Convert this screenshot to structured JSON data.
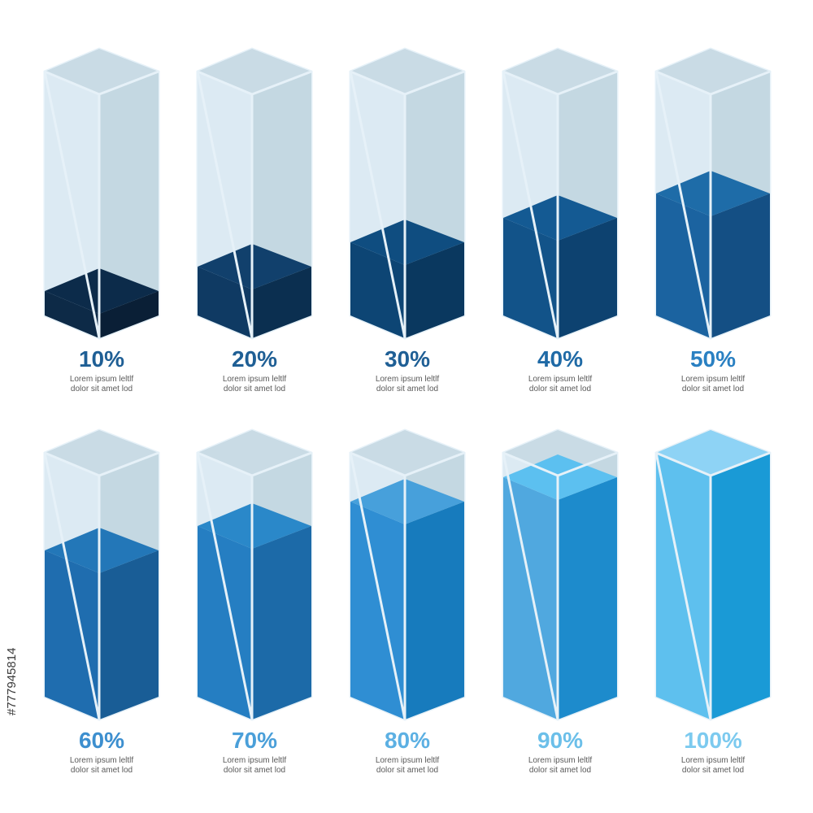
{
  "chart_data": {
    "type": "bar",
    "categories": [
      "10%",
      "20%",
      "30%",
      "40%",
      "50%",
      "60%",
      "70%",
      "80%",
      "90%",
      "100%"
    ],
    "values": [
      10,
      20,
      30,
      40,
      50,
      60,
      70,
      80,
      90,
      100
    ],
    "ylim": [
      0,
      100
    ],
    "title": "",
    "xlabel": "",
    "ylabel": "",
    "grid": false,
    "bars": [
      {
        "label": "10%",
        "value": 10,
        "caption_line1": "Lorem ipsum leltlf",
        "caption_line2": "dolor sit amet lod",
        "colors": {
          "top": "#0c2b4a",
          "left": "#0d2a47",
          "right": "#0a1f36"
        },
        "label_color": "#1f5f95"
      },
      {
        "label": "20%",
        "value": 20,
        "caption_line1": "Lorem ipsum leltlf",
        "caption_line2": "dolor sit amet lod",
        "colors": {
          "top": "#11406c",
          "left": "#0f3a63",
          "right": "#0b2f50"
        },
        "label_color": "#1f5f95"
      },
      {
        "label": "30%",
        "value": 30,
        "caption_line1": "Lorem ipsum leltlf",
        "caption_line2": "dolor sit amet lod",
        "colors": {
          "top": "#0f4d80",
          "left": "#0d4574",
          "right": "#0a385f"
        },
        "label_color": "#1f5f95"
      },
      {
        "label": "40%",
        "value": 40,
        "caption_line1": "Lorem ipsum leltlf",
        "caption_line2": "dolor sit amet lod",
        "colors": {
          "top": "#145a93",
          "left": "#125389",
          "right": "#0d4270"
        },
        "label_color": "#1f6aa6"
      },
      {
        "label": "50%",
        "value": 50,
        "caption_line1": "Lorem ipsum leltlf",
        "caption_line2": "dolor sit amet lod",
        "colors": {
          "top": "#1e6ca8",
          "left": "#1b63a0",
          "right": "#144f84"
        },
        "label_color": "#2a80c2"
      },
      {
        "label": "60%",
        "value": 60,
        "caption_line1": "Lorem ipsum leltlf",
        "caption_line2": "dolor sit amet lod",
        "colors": {
          "top": "#2377b8",
          "left": "#1f6daf",
          "right": "#195d96"
        },
        "label_color": "#3d8fcf"
      },
      {
        "label": "70%",
        "value": 70,
        "caption_line1": "Lorem ipsum leltlf",
        "caption_line2": "dolor sit amet lod",
        "colors": {
          "top": "#2a88c9",
          "left": "#257ec2",
          "right": "#1c6aa8"
        },
        "label_color": "#4a9fd9"
      },
      {
        "label": "80%",
        "value": 80,
        "caption_line1": "Lorem ipsum leltlf",
        "caption_line2": "dolor sit amet lod",
        "colors": {
          "top": "#47a0db",
          "left": "#2f8ed3",
          "right": "#177bbd"
        },
        "label_color": "#5cb0e3"
      },
      {
        "label": "90%",
        "value": 90,
        "caption_line1": "Lorem ipsum leltlf",
        "caption_line2": "dolor sit amet lod",
        "colors": {
          "top": "#5cc0f0",
          "left": "#50a8df",
          "right": "#1d8bcc"
        },
        "label_color": "#6bbfe9"
      },
      {
        "label": "100%",
        "value": 100,
        "caption_line1": "Lorem ipsum leltlf",
        "caption_line2": "dolor sit amet lod",
        "colors": {
          "top": "#8ed3f5",
          "left": "#5ec0ee",
          "right": "#1a9ad6"
        },
        "label_color": "#7ccaef"
      }
    ],
    "glass_colors": {
      "left": "#dceaf3",
      "right": "#c4d8e2",
      "top": "#c9dbe5",
      "outline": "#e6f1f8"
    }
  },
  "stock_id": "#777945814"
}
